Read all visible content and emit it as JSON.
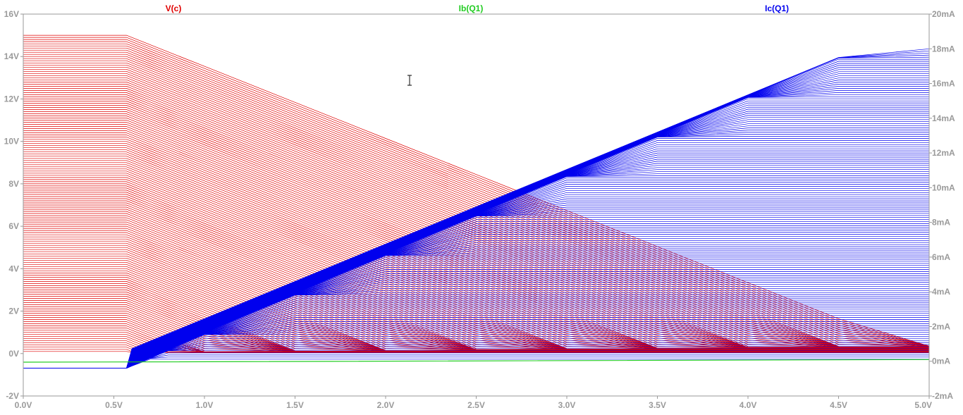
{
  "chart_data": {
    "type": "line",
    "traces": [
      {
        "name": "V(c)",
        "color": "#e00000",
        "axis": "left"
      },
      {
        "name": "Ib(Q1)",
        "color": "#22cc22",
        "axis": "right"
      },
      {
        "name": "Ic(Q1)",
        "color": "#0000ee",
        "axis": "right"
      }
    ],
    "x_axis": {
      "range": [
        0,
        5
      ],
      "ticks": [
        "0.0V",
        "0.5V",
        "1.0V",
        "1.5V",
        "2.0V",
        "2.5V",
        "3.0V",
        "3.5V",
        "4.0V",
        "4.5V",
        "5.0V"
      ]
    },
    "y_left": {
      "range": [
        -2,
        16
      ],
      "ticks": [
        "-2V",
        "0V",
        "2V",
        "4V",
        "6V",
        "8V",
        "10V",
        "12V",
        "14V",
        "16V"
      ]
    },
    "y_right": {
      "range": [
        -2,
        20
      ],
      "ticks": [
        "-2mA",
        "0mA",
        "2mA",
        "4mA",
        "6mA",
        "8mA",
        "10mA",
        "12mA",
        "14mA",
        "16mA",
        "18mA",
        "20mA"
      ]
    },
    "sweep": {
      "step_count": 150,
      "vcc_max": 15,
      "vcc_min": 0.1,
      "vbe_on": 0.57,
      "vc_slope": 3.4,
      "ic_slope": 4.3,
      "ic_band": 1.0
    },
    "ib_trace": {
      "x": [
        0,
        0.57,
        5.0
      ],
      "y_mA": [
        -0.05,
        -0.04,
        0.1
      ]
    },
    "grid": false
  },
  "cursor": {
    "icon": "text-cursor-icon",
    "x": 581,
    "y": 114
  }
}
